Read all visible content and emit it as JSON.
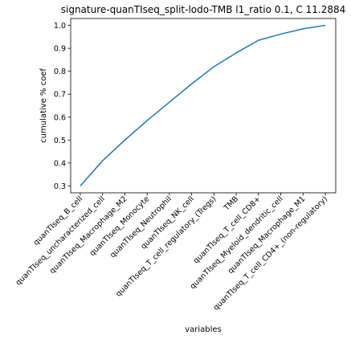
{
  "chart_data": {
    "type": "line",
    "title": "signature-quanTIseq_split-lodo-TMB l1_ratio 0.1, C 11.2884",
    "xlabel": "variables",
    "ylabel": "cumulative % coef",
    "categories": [
      "quanTIseq_B_cell",
      "quanTIseq_uncharacterized_cell",
      "quanTIseq_Macrophage_M2",
      "quanTIseq_Monocyte",
      "quanTIseq_Neutrophil",
      "quanTIseq_NK_cell",
      "quanTIseq_T_cell_regulatory_(Tregs)",
      "TMB",
      "quanTIseq_T_cell_CD8+",
      "quanTIseq_Myeloid_dendritic_cell",
      "quanTIseq_Macrophage_M1",
      "quanTIseq_T_cell_CD4+_(non-regulatory)"
    ],
    "series": [
      {
        "values": [
          0.3,
          0.41,
          0.5,
          0.585,
          0.665,
          0.745,
          0.82,
          0.88,
          0.935,
          0.962,
          0.985,
          1.0
        ]
      }
    ],
    "ylim": [
      0.27,
      1.03
    ],
    "yticks": [
      0.3,
      0.4,
      0.5,
      0.6,
      0.7,
      0.8,
      0.9,
      1.0
    ],
    "grid": false,
    "color": "#1f77b4"
  }
}
